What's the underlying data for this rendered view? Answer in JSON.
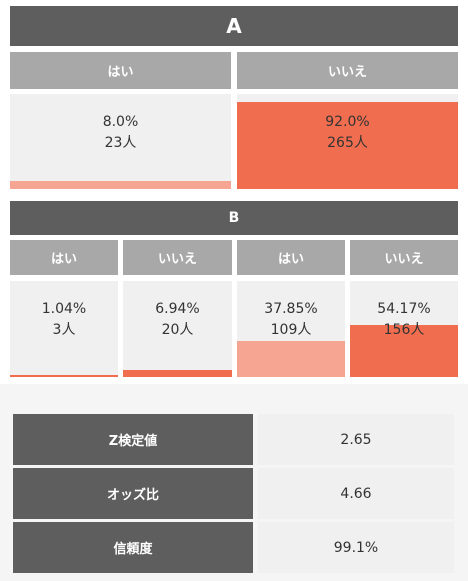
{
  "colors": {
    "dark_header": "#5e5e5e",
    "col_header": "#a8a8a8",
    "cell_bg": "#f0f0f0",
    "light_fill": "#f7a593",
    "dark_fill": "#f06e4f"
  },
  "section_a": {
    "title": "A",
    "headers": [
      "はい",
      "いいえ"
    ],
    "cells": [
      {
        "percent": "8.0%",
        "count": "23人",
        "share": 0.08
      },
      {
        "percent": "92.0%",
        "count": "265人",
        "share": 0.92
      }
    ]
  },
  "section_b": {
    "title": "B",
    "headers": [
      "はい",
      "いいえ",
      "はい",
      "いいえ"
    ],
    "cells": [
      {
        "percent": "1.04%",
        "count": "3人",
        "share": 0.0104
      },
      {
        "percent": "6.94%",
        "count": "20人",
        "share": 0.0694
      },
      {
        "percent": "37.85%",
        "count": "109人",
        "share": 0.3785
      },
      {
        "percent": "54.17%",
        "count": "156人",
        "share": 0.5417
      }
    ]
  },
  "stats": [
    {
      "label": "Z検定値",
      "value": "2.65"
    },
    {
      "label": "オッズ比",
      "value": "4.66"
    },
    {
      "label": "信頼度",
      "value": "99.1%"
    }
  ]
}
